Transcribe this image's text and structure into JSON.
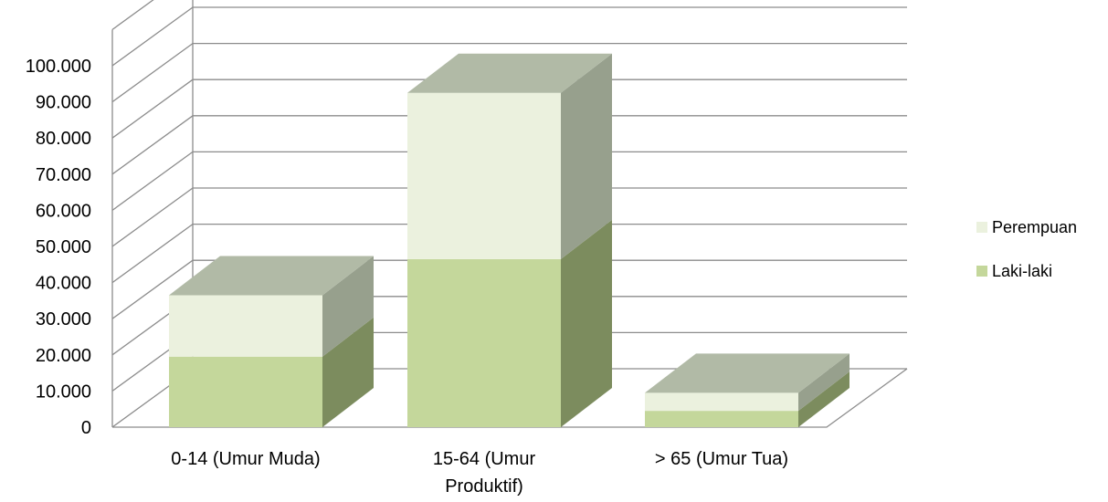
{
  "chart_data": {
    "type": "bar",
    "stacked": true,
    "three_d": true,
    "categories": [
      [
        "0-14 (Umur Muda)"
      ],
      [
        "15-64 (Umur",
        "Produktif)"
      ],
      [
        "> 65 (Umur Tua)"
      ]
    ],
    "series": [
      {
        "name": "Laki-laki",
        "values": [
          19500,
          46500,
          4500
        ],
        "color": "#c4d79b",
        "side_color": "#7c8c5e"
      },
      {
        "name": "Perempuan",
        "values": [
          17000,
          46000,
          5000
        ],
        "color": "#ebf1de",
        "side_color": "#97a08d"
      }
    ],
    "top_color": "#b1baa6",
    "y_ticks": [
      "0",
      "10.000",
      "20.000",
      "30.000",
      "40.000",
      "50.000",
      "60.000",
      "70.000",
      "80.000",
      "90.000",
      "100.000"
    ],
    "ylim": [
      0,
      110000
    ],
    "grid": true,
    "legend_position": "right",
    "title": "",
    "xlabel": "",
    "ylabel": ""
  }
}
